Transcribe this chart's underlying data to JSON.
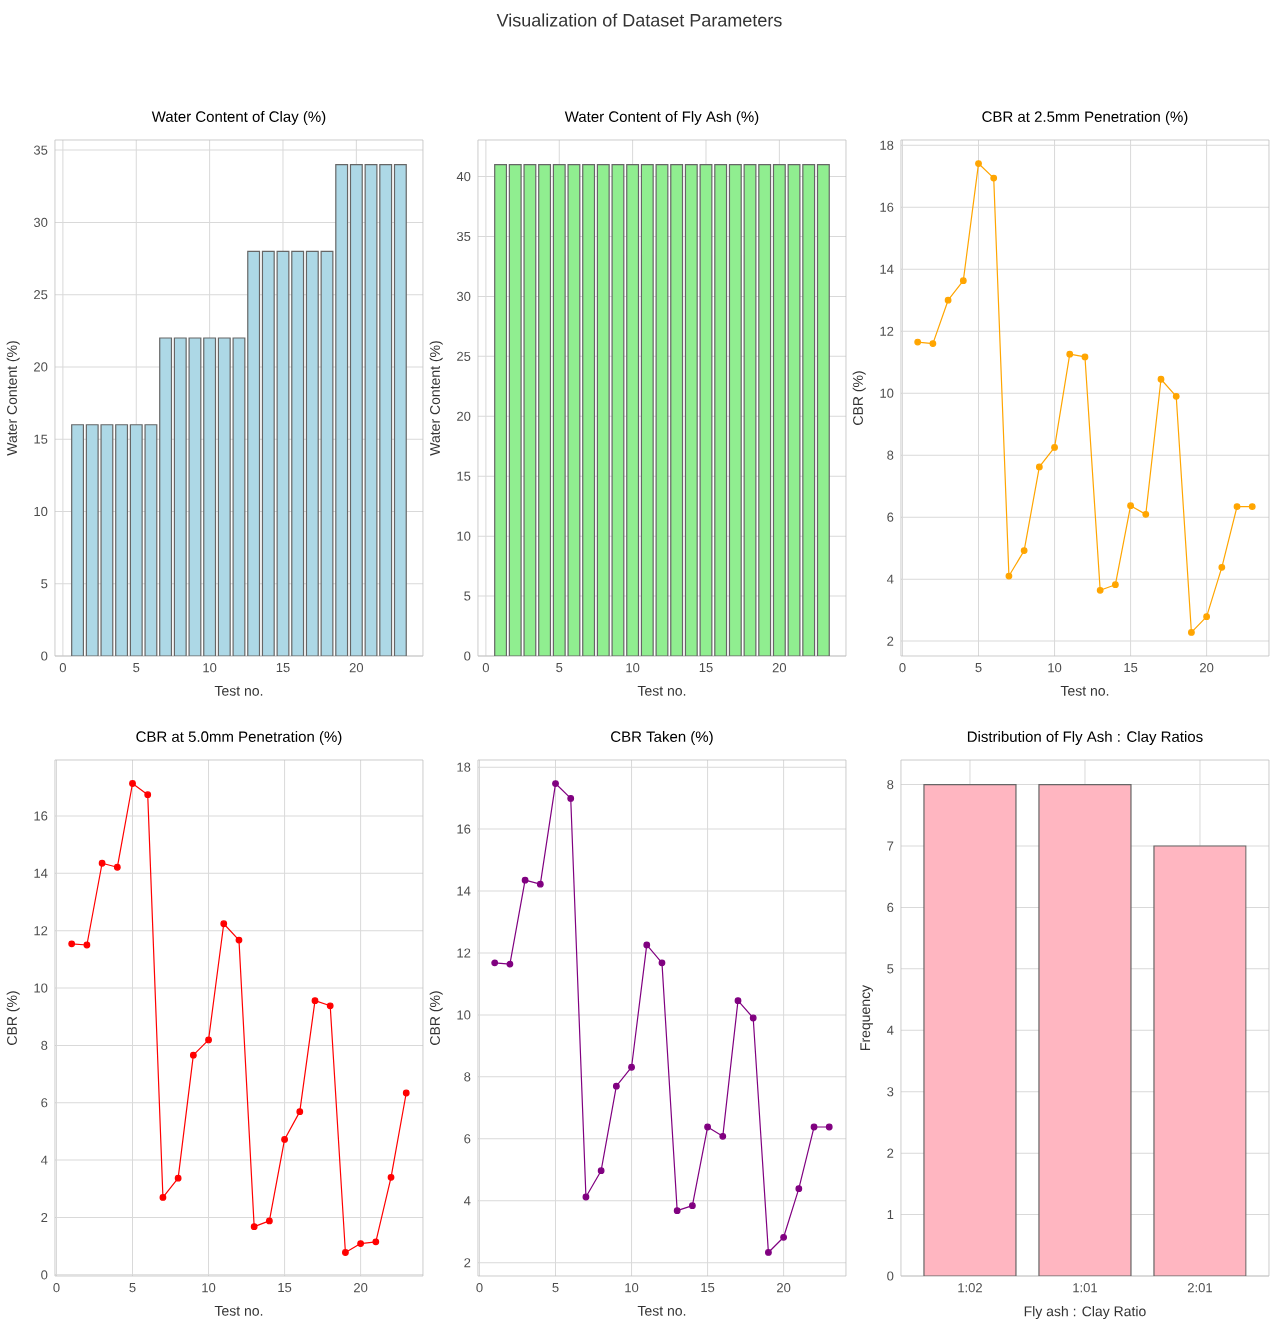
{
  "chart_data": [
    {
      "type": "bar",
      "title": "Water Content of Clay (%)",
      "xlabel": "Test no.",
      "ylabel": "Water Content (%)",
      "annotations": [
        "Visualization of Dataset Parameters"
      ],
      "color": "#add8e6",
      "grid": true,
      "x": [
        1,
        2,
        3,
        4,
        5,
        6,
        7,
        8,
        9,
        10,
        11,
        12,
        13,
        14,
        15,
        16,
        17,
        18,
        19,
        20,
        21,
        22,
        23
      ],
      "values": [
        16,
        16,
        16,
        16,
        16,
        16,
        22,
        22,
        22,
        22,
        22,
        22,
        28,
        28,
        28,
        28,
        28,
        28,
        34,
        34,
        34,
        34,
        34
      ],
      "xlim": [
        -0.54,
        24.54
      ],
      "xticks": [
        0,
        5,
        10,
        15,
        20
      ],
      "ylim": [
        0,
        35.7
      ],
      "yticks": [
        0,
        5,
        10,
        15,
        20,
        25,
        30,
        35
      ]
    },
    {
      "type": "bar",
      "title": "Water Content of Fly Ash (%)",
      "xlabel": "Test no.",
      "ylabel": "Water Content (%)",
      "color": "#90ee90",
      "grid": true,
      "x": [
        1,
        2,
        3,
        4,
        5,
        6,
        7,
        8,
        9,
        10,
        11,
        12,
        13,
        14,
        15,
        16,
        17,
        18,
        19,
        20,
        21,
        22,
        23
      ],
      "values": [
        41,
        41,
        41,
        41,
        41,
        41,
        41,
        41,
        41,
        41,
        41,
        41,
        41,
        41,
        41,
        41,
        41,
        41,
        41,
        41,
        41,
        41,
        41
      ],
      "xlim": [
        -0.54,
        24.54
      ],
      "xticks": [
        0,
        5,
        10,
        15,
        20
      ],
      "ylim": [
        0,
        43.05
      ],
      "yticks": [
        0,
        5,
        10,
        15,
        20,
        25,
        30,
        35,
        40
      ]
    },
    {
      "type": "line",
      "title": "CBR at 2.5mm Penetration (%)",
      "xlabel": "Test no.",
      "ylabel": "CBR (%)",
      "color": "#ffa500",
      "grid": true,
      "marker": "circle",
      "x": [
        1,
        2,
        3,
        4,
        5,
        6,
        7,
        8,
        9,
        10,
        11,
        12,
        13,
        14,
        15,
        16,
        17,
        18,
        19,
        20,
        21,
        22,
        23
      ],
      "values": [
        11.65,
        11.6,
        13.0,
        13.63,
        17.41,
        16.94,
        4.1,
        4.92,
        7.62,
        8.25,
        11.26,
        11.17,
        3.64,
        3.82,
        6.37,
        6.09,
        10.45,
        9.9,
        2.28,
        2.79,
        4.38,
        6.34,
        6.34
      ],
      "xlim": [
        -0.1,
        24.1
      ],
      "xticks": [
        0,
        5,
        10,
        15,
        20
      ],
      "ylim": [
        1.52,
        18.17
      ],
      "yticks": [
        2,
        4,
        6,
        8,
        10,
        12,
        14,
        16,
        18
      ]
    },
    {
      "type": "line",
      "title": "CBR at 5.0mm Penetration (%)",
      "xlabel": "Test no.",
      "ylabel": "CBR (%)",
      "color": "#ff0000",
      "grid": true,
      "marker": "circle",
      "x": [
        1,
        2,
        3,
        4,
        5,
        6,
        7,
        8,
        9,
        10,
        11,
        12,
        13,
        14,
        15,
        16,
        17,
        18,
        19,
        20,
        21,
        22,
        23
      ],
      "values": [
        11.54,
        11.5,
        14.35,
        14.21,
        17.13,
        16.74,
        2.7,
        3.37,
        7.66,
        8.19,
        12.24,
        11.67,
        1.68,
        1.88,
        4.72,
        5.69,
        9.56,
        9.38,
        0.78,
        1.09,
        1.15,
        3.4,
        6.34
      ],
      "xlim": [
        -0.1,
        24.1
      ],
      "xticks": [
        0,
        5,
        10,
        15,
        20
      ],
      "ylim": [
        -0.04,
        17.95
      ],
      "yticks": [
        0,
        2,
        4,
        6,
        8,
        10,
        12,
        14,
        16
      ]
    },
    {
      "type": "line",
      "title": "CBR Taken (%)",
      "xlabel": "Test no.",
      "ylabel": "CBR (%)",
      "color": "#800080",
      "grid": true,
      "marker": "circle",
      "x": [
        1,
        2,
        3,
        4,
        5,
        6,
        7,
        8,
        9,
        10,
        11,
        12,
        13,
        14,
        15,
        16,
        17,
        18,
        19,
        20,
        21,
        22,
        23
      ],
      "values": [
        11.68,
        11.64,
        14.35,
        14.22,
        17.47,
        16.99,
        4.12,
        4.97,
        7.7,
        8.31,
        12.26,
        11.68,
        3.68,
        3.84,
        6.38,
        6.08,
        10.46,
        9.9,
        2.33,
        2.82,
        4.39,
        6.38,
        6.38
      ],
      "xlim": [
        -0.1,
        24.1
      ],
      "xticks": [
        0,
        5,
        10,
        15,
        20
      ],
      "ylim": [
        1.57,
        18.23
      ],
      "yticks": [
        2,
        4,
        6,
        8,
        10,
        12,
        14,
        16,
        18
      ]
    },
    {
      "type": "bar",
      "title": "Distribution of Fly Ash : Clay Ratios",
      "xlabel": "Fly ash : Clay Ratio",
      "ylabel": "Frequency",
      "color": "#ffb6c1",
      "grid": true,
      "categories": [
        "1:02",
        "1:01",
        "2:01"
      ],
      "values": [
        8,
        8,
        7
      ],
      "ylim": [
        0,
        8.4
      ],
      "yticks": [
        0,
        1,
        2,
        3,
        4,
        5,
        6,
        7,
        8
      ]
    }
  ]
}
